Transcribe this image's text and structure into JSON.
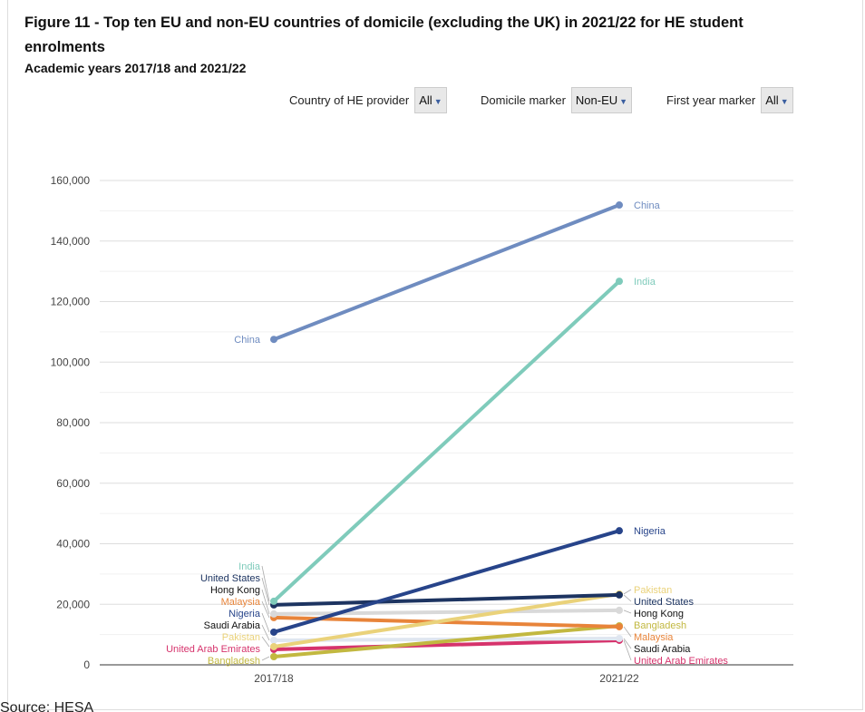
{
  "title": "Figure 11 - Top ten EU and non-EU countries of domicile (excluding the UK) in 2021/22 for HE student enrolments",
  "subtitle": "Academic years 2017/18 and 2021/22",
  "controls": [
    {
      "label": "Country of HE provider",
      "value": "All"
    },
    {
      "label": "Domicile marker",
      "value": "Non-EU"
    },
    {
      "label": "First year marker",
      "value": "All"
    }
  ],
  "source": "Source: HESA",
  "chart_data": {
    "type": "line",
    "categories": [
      "2017/18",
      "2021/22"
    ],
    "ylim": [
      0,
      160000
    ],
    "yticks": [
      0,
      20000,
      40000,
      60000,
      80000,
      100000,
      120000,
      140000,
      160000
    ],
    "ytick_labels": [
      "0",
      "20,000",
      "40,000",
      "60,000",
      "80,000",
      "100,000",
      "120,000",
      "140,000",
      "160,000"
    ],
    "grid": true,
    "series": [
      {
        "name": "China",
        "values": [
          107500,
          151900
        ],
        "color": "#6f8cc0"
      },
      {
        "name": "India",
        "values": [
          21000,
          126700
        ],
        "color": "#7fcbbb"
      },
      {
        "name": "Nigeria",
        "values": [
          10800,
          44300
        ],
        "color": "#27448a"
      },
      {
        "name": "United States",
        "values": [
          19800,
          23100
        ],
        "color": "#1d3461"
      },
      {
        "name": "Pakistan",
        "values": [
          6000,
          23400
        ],
        "color": "#ead27a"
      },
      {
        "name": "Hong Kong",
        "values": [
          16800,
          18000
        ],
        "color": "#d9d9d9",
        "label_color": "#111111"
      },
      {
        "name": "Malaysia",
        "values": [
          15600,
          12600
        ],
        "color": "#e8843a"
      },
      {
        "name": "Bangladesh",
        "values": [
          2700,
          12900
        ],
        "color": "#c2b840"
      },
      {
        "name": "Saudi Arabia",
        "values": [
          8100,
          8700
        ],
        "color": "#dfe6f0",
        "label_color": "#111111"
      },
      {
        "name": "United Arab Emirates",
        "values": [
          5100,
          8100
        ],
        "color": "#d6336c"
      }
    ]
  }
}
